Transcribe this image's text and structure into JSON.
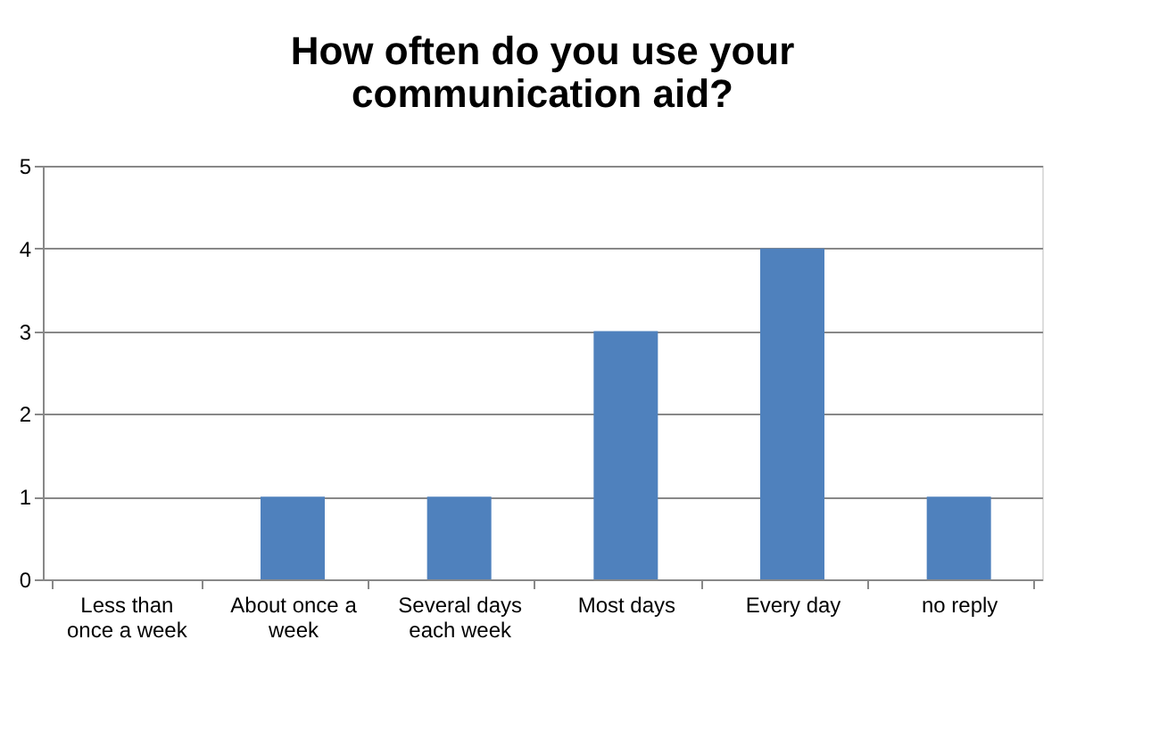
{
  "chart_data": {
    "type": "bar",
    "title": "How often do you use your communication aid?",
    "categories": [
      "Less than once a week",
      "About once a week",
      "Several days each week",
      "Most days",
      "Every day",
      "no reply"
    ],
    "values": [
      0,
      1,
      1,
      3,
      4,
      1
    ],
    "color": "#4f81bd",
    "ylim": [
      0,
      5
    ],
    "yticks": [
      0,
      1,
      2,
      3,
      4,
      5
    ],
    "grid": "y"
  }
}
